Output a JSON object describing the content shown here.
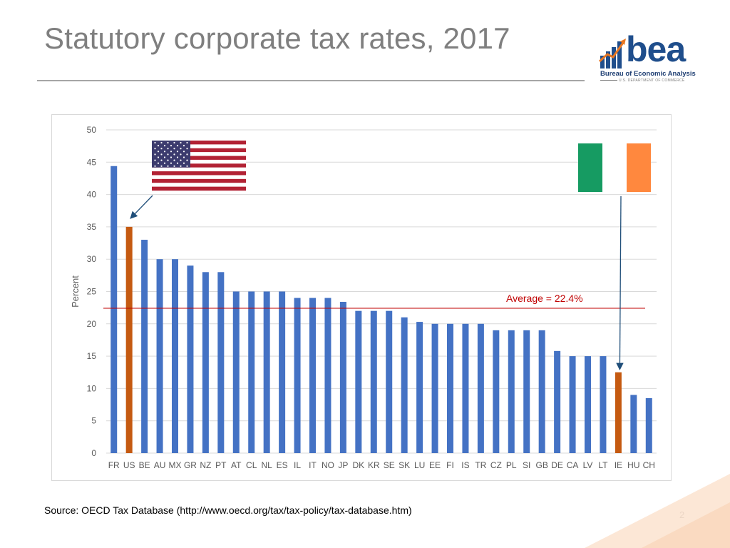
{
  "slide": {
    "title": "Statutory corporate tax rates, 2017",
    "source": "Source: OECD Tax Database (http://www.oecd.org/tax/tax-policy/tax-database.htm)",
    "page_number": "2"
  },
  "logo": {
    "wordmark": "bea",
    "name": "Bureau of Economic Analysis",
    "department": "U.S. DEPARTMENT OF COMMERCE",
    "icon": "bar-chart-arrow-icon",
    "color": "#1f4e8c",
    "accent": "#e87722"
  },
  "chart_data": {
    "type": "bar",
    "ylabel": "Percent",
    "ylim": [
      0,
      50
    ],
    "yticks": [
      0,
      5,
      10,
      15,
      20,
      25,
      30,
      35,
      40,
      45,
      50
    ],
    "grid": true,
    "categories": [
      "FR",
      "US",
      "BE",
      "AU",
      "MX",
      "GR",
      "NZ",
      "PT",
      "AT",
      "CL",
      "NL",
      "ES",
      "IL",
      "IT",
      "NO",
      "JP",
      "DK",
      "KR",
      "SE",
      "SK",
      "LU",
      "EE",
      "FI",
      "IS",
      "TR",
      "CZ",
      "PL",
      "SI",
      "GB",
      "DE",
      "CA",
      "LV",
      "LT",
      "IE",
      "HU",
      "CH"
    ],
    "values": [
      44.4,
      35,
      33,
      30,
      30,
      29,
      28,
      28,
      25,
      25,
      25,
      25,
      24,
      24,
      24,
      23.4,
      22,
      22,
      22,
      21,
      20.3,
      20,
      20,
      20,
      20,
      19,
      19,
      19,
      19,
      15.8,
      15,
      15,
      15,
      12.5,
      9,
      8.5
    ],
    "highlighted": [
      "US",
      "IE"
    ],
    "bar_color": "#4472c4",
    "highlight_color": "#c55a11",
    "average": {
      "value": 22.4,
      "label": "Average = 22.4%",
      "color": "#c00000"
    },
    "annotations": [
      {
        "category": "US",
        "icon": "us-flag-icon"
      },
      {
        "category": "IE",
        "icon": "ireland-flag-icon"
      }
    ]
  }
}
